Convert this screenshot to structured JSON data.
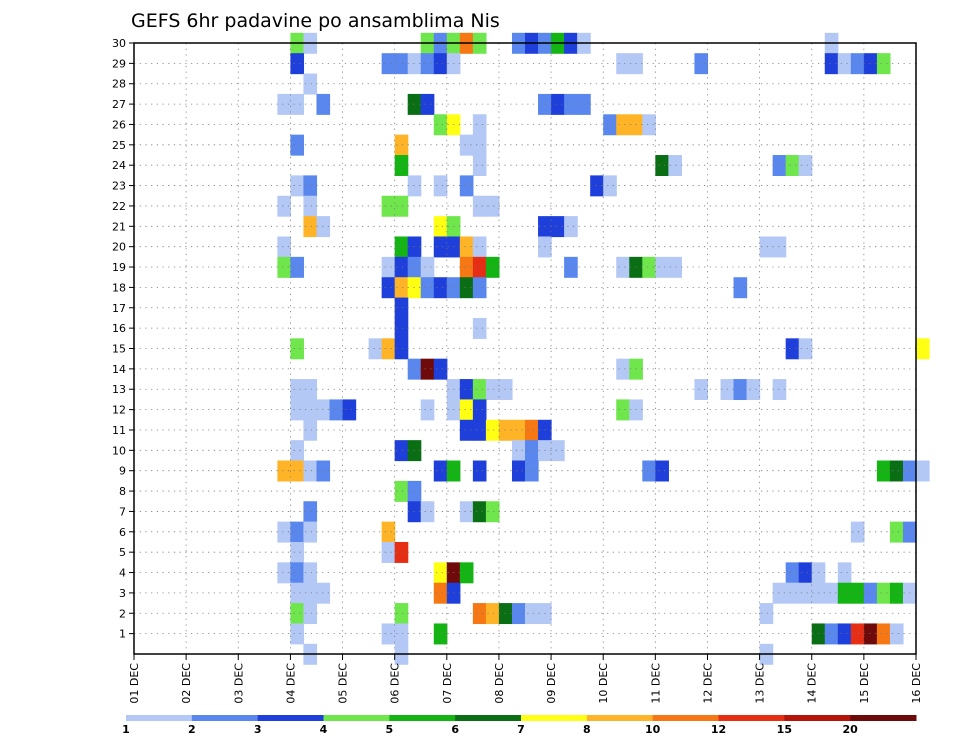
{
  "chart_data": {
    "type": "heatmap",
    "title": "GEFS 6hr padavine po ansamblima Nis",
    "xlabel": "",
    "ylabel": "",
    "x_tick_labels": [
      "01 DEC",
      "02 DEC",
      "03 DEC",
      "04 DEC",
      "05 DEC",
      "06 DEC",
      "07 DEC",
      "08 DEC",
      "09 DEC",
      "10 DEC",
      "11 DEC",
      "12 DEC",
      "13 DEC",
      "14 DEC",
      "15 DEC",
      "16 DEC"
    ],
    "x_range_days": [
      0,
      15
    ],
    "steps_per_day": 4,
    "y_tick_labels": [
      "1",
      "2",
      "3",
      "4",
      "5",
      "6",
      "7",
      "8",
      "9",
      "10",
      "11",
      "12",
      "13",
      "14",
      "15",
      "16",
      "17",
      "18",
      "19",
      "20",
      "21",
      "22",
      "23",
      "24",
      "25",
      "26",
      "27",
      "28",
      "29",
      "30"
    ],
    "y_range": [
      0,
      30
    ],
    "grid": true,
    "colorbar": {
      "labels": [
        "1",
        "2",
        "3",
        "4",
        "5",
        "6",
        "7",
        "8",
        "10",
        "12",
        "15",
        "20"
      ],
      "colors": [
        "#b4c8f5",
        "#5a87ee",
        "#1e3fd9",
        "#6ee64c",
        "#14b414",
        "#0a6e14",
        "#ffff14",
        "#ffb428",
        "#f57814",
        "#e62e14",
        "#b4140a",
        "#6e0a0a"
      ]
    },
    "level_colors": [
      "#b4c8f5",
      "#5a87ee",
      "#1e3fd9",
      "#6ee64c",
      "#14b414",
      "#0a6e14",
      "#ffff14",
      "#ffb428",
      "#f57814",
      "#e62e14",
      "#b4140a",
      "#6e0a0a"
    ],
    "cells_note": "each cell: [member, time-step index (6h steps from 01 DEC 00Z), level index 1-12 into colorbar]",
    "cells": [
      [
        30,
        12,
        4
      ],
      [
        30,
        13,
        1
      ],
      [
        30,
        22,
        4
      ],
      [
        30,
        23,
        2
      ],
      [
        30,
        24,
        4
      ],
      [
        30,
        25,
        9
      ],
      [
        30,
        26,
        4
      ],
      [
        30,
        29,
        2
      ],
      [
        30,
        30,
        3
      ],
      [
        30,
        31,
        2
      ],
      [
        30,
        32,
        5
      ],
      [
        30,
        33,
        3
      ],
      [
        30,
        34,
        1
      ],
      [
        30,
        53,
        1
      ],
      [
        29,
        12,
        3
      ],
      [
        29,
        19,
        2
      ],
      [
        29,
        20,
        2
      ],
      [
        29,
        21,
        1
      ],
      [
        29,
        22,
        2
      ],
      [
        29,
        23,
        3
      ],
      [
        29,
        24,
        1
      ],
      [
        29,
        37,
        1
      ],
      [
        29,
        38,
        1
      ],
      [
        29,
        43,
        2
      ],
      [
        29,
        53,
        3
      ],
      [
        29,
        54,
        1
      ],
      [
        29,
        55,
        2
      ],
      [
        29,
        56,
        3
      ],
      [
        29,
        57,
        4
      ],
      [
        28,
        13,
        1
      ],
      [
        27,
        11,
        1
      ],
      [
        27,
        12,
        1
      ],
      [
        27,
        14,
        2
      ],
      [
        27,
        21,
        6
      ],
      [
        27,
        22,
        3
      ],
      [
        27,
        31,
        2
      ],
      [
        27,
        32,
        3
      ],
      [
        27,
        33,
        2
      ],
      [
        27,
        34,
        2
      ],
      [
        26,
        23,
        4
      ],
      [
        26,
        24,
        7
      ],
      [
        26,
        26,
        1
      ],
      [
        26,
        36,
        2
      ],
      [
        26,
        37,
        8
      ],
      [
        26,
        38,
        8
      ],
      [
        26,
        39,
        1
      ],
      [
        25,
        12,
        2
      ],
      [
        25,
        20,
        8
      ],
      [
        25,
        25,
        1
      ],
      [
        25,
        26,
        1
      ],
      [
        24,
        20,
        5
      ],
      [
        24,
        26,
        1
      ],
      [
        24,
        40,
        6
      ],
      [
        24,
        41,
        1
      ],
      [
        24,
        49,
        2
      ],
      [
        24,
        50,
        4
      ],
      [
        24,
        51,
        1
      ],
      [
        23,
        12,
        1
      ],
      [
        23,
        13,
        2
      ],
      [
        23,
        21,
        1
      ],
      [
        23,
        23,
        1
      ],
      [
        23,
        25,
        2
      ],
      [
        23,
        35,
        3
      ],
      [
        23,
        36,
        1
      ],
      [
        22,
        11,
        1
      ],
      [
        22,
        13,
        1
      ],
      [
        22,
        19,
        4
      ],
      [
        22,
        20,
        4
      ],
      [
        22,
        26,
        1
      ],
      [
        22,
        27,
        1
      ],
      [
        21,
        13,
        8
      ],
      [
        21,
        14,
        1
      ],
      [
        21,
        23,
        7
      ],
      [
        21,
        24,
        4
      ],
      [
        21,
        31,
        3
      ],
      [
        21,
        32,
        3
      ],
      [
        21,
        33,
        1
      ],
      [
        20,
        11,
        1
      ],
      [
        20,
        20,
        5
      ],
      [
        20,
        21,
        3
      ],
      [
        20,
        23,
        3
      ],
      [
        20,
        24,
        3
      ],
      [
        20,
        25,
        8
      ],
      [
        20,
        26,
        1
      ],
      [
        20,
        31,
        1
      ],
      [
        20,
        48,
        1
      ],
      [
        20,
        49,
        1
      ],
      [
        19,
        11,
        4
      ],
      [
        19,
        12,
        2
      ],
      [
        19,
        19,
        1
      ],
      [
        19,
        20,
        3
      ],
      [
        19,
        21,
        2
      ],
      [
        19,
        22,
        1
      ],
      [
        19,
        25,
        9
      ],
      [
        19,
        26,
        10
      ],
      [
        19,
        27,
        5
      ],
      [
        19,
        33,
        2
      ],
      [
        19,
        37,
        1
      ],
      [
        19,
        38,
        6
      ],
      [
        19,
        39,
        4
      ],
      [
        19,
        40,
        1
      ],
      [
        19,
        41,
        1
      ],
      [
        18,
        19,
        3
      ],
      [
        18,
        20,
        8
      ],
      [
        18,
        21,
        7
      ],
      [
        18,
        22,
        2
      ],
      [
        18,
        23,
        3
      ],
      [
        18,
        24,
        2
      ],
      [
        18,
        25,
        6
      ],
      [
        18,
        26,
        2
      ],
      [
        18,
        46,
        2
      ],
      [
        17,
        20,
        3
      ],
      [
        16,
        20,
        3
      ],
      [
        16,
        26,
        1
      ],
      [
        15,
        12,
        4
      ],
      [
        15,
        18,
        1
      ],
      [
        15,
        19,
        8
      ],
      [
        15,
        20,
        3
      ],
      [
        15,
        50,
        3
      ],
      [
        15,
        51,
        1
      ],
      [
        15,
        60,
        7
      ],
      [
        14,
        21,
        2
      ],
      [
        14,
        22,
        12
      ],
      [
        14,
        23,
        3
      ],
      [
        14,
        37,
        1
      ],
      [
        14,
        38,
        4
      ],
      [
        13,
        12,
        1
      ],
      [
        13,
        13,
        1
      ],
      [
        13,
        24,
        1
      ],
      [
        13,
        25,
        3
      ],
      [
        13,
        26,
        4
      ],
      [
        13,
        27,
        1
      ],
      [
        13,
        28,
        1
      ],
      [
        13,
        43,
        1
      ],
      [
        13,
        45,
        1
      ],
      [
        13,
        46,
        2
      ],
      [
        13,
        47,
        1
      ],
      [
        13,
        49,
        1
      ],
      [
        12,
        12,
        1
      ],
      [
        12,
        13,
        1
      ],
      [
        12,
        14,
        1
      ],
      [
        12,
        15,
        2
      ],
      [
        12,
        16,
        3
      ],
      [
        12,
        22,
        1
      ],
      [
        12,
        24,
        1
      ],
      [
        12,
        25,
        7
      ],
      [
        12,
        26,
        3
      ],
      [
        12,
        37,
        4
      ],
      [
        12,
        38,
        1
      ],
      [
        11,
        13,
        1
      ],
      [
        11,
        25,
        3
      ],
      [
        11,
        26,
        3
      ],
      [
        11,
        27,
        7
      ],
      [
        11,
        28,
        8
      ],
      [
        11,
        29,
        8
      ],
      [
        11,
        30,
        9
      ],
      [
        11,
        31,
        3
      ],
      [
        10,
        12,
        1
      ],
      [
        10,
        20,
        3
      ],
      [
        10,
        21,
        6
      ],
      [
        10,
        29,
        1
      ],
      [
        10,
        30,
        2
      ],
      [
        10,
        31,
        1
      ],
      [
        10,
        32,
        1
      ],
      [
        9,
        11,
        8
      ],
      [
        9,
        12,
        8
      ],
      [
        9,
        13,
        1
      ],
      [
        9,
        14,
        2
      ],
      [
        9,
        23,
        3
      ],
      [
        9,
        24,
        5
      ],
      [
        9,
        26,
        3
      ],
      [
        9,
        29,
        3
      ],
      [
        9,
        30,
        2
      ],
      [
        9,
        39,
        2
      ],
      [
        9,
        40,
        3
      ],
      [
        9,
        57,
        5
      ],
      [
        9,
        58,
        6
      ],
      [
        9,
        59,
        2
      ],
      [
        9,
        60,
        1
      ],
      [
        8,
        20,
        4
      ],
      [
        8,
        21,
        2
      ],
      [
        7,
        13,
        2
      ],
      [
        7,
        21,
        3
      ],
      [
        7,
        22,
        1
      ],
      [
        7,
        25,
        1
      ],
      [
        7,
        26,
        6
      ],
      [
        7,
        27,
        4
      ],
      [
        6,
        11,
        1
      ],
      [
        6,
        12,
        2
      ],
      [
        6,
        13,
        1
      ],
      [
        6,
        19,
        8
      ],
      [
        6,
        55,
        1
      ],
      [
        6,
        58,
        4
      ],
      [
        6,
        59,
        2
      ],
      [
        5,
        12,
        1
      ],
      [
        5,
        19,
        1
      ],
      [
        5,
        20,
        10
      ],
      [
        4,
        11,
        1
      ],
      [
        4,
        12,
        2
      ],
      [
        4,
        13,
        1
      ],
      [
        4,
        23,
        7
      ],
      [
        4,
        24,
        12
      ],
      [
        4,
        25,
        5
      ],
      [
        4,
        50,
        2
      ],
      [
        4,
        51,
        3
      ],
      [
        4,
        52,
        1
      ],
      [
        4,
        54,
        1
      ],
      [
        3,
        12,
        1
      ],
      [
        3,
        13,
        1
      ],
      [
        3,
        14,
        1
      ],
      [
        3,
        23,
        9
      ],
      [
        3,
        24,
        3
      ],
      [
        3,
        49,
        1
      ],
      [
        3,
        50,
        1
      ],
      [
        3,
        51,
        1
      ],
      [
        3,
        52,
        1
      ],
      [
        3,
        53,
        1
      ],
      [
        3,
        54,
        5
      ],
      [
        3,
        55,
        5
      ],
      [
        3,
        56,
        2
      ],
      [
        3,
        57,
        4
      ],
      [
        3,
        58,
        5
      ],
      [
        3,
        59,
        1
      ],
      [
        2,
        12,
        4
      ],
      [
        2,
        13,
        1
      ],
      [
        2,
        20,
        4
      ],
      [
        2,
        26,
        9
      ],
      [
        2,
        27,
        8
      ],
      [
        2,
        28,
        6
      ],
      [
        2,
        29,
        2
      ],
      [
        2,
        30,
        1
      ],
      [
        2,
        31,
        1
      ],
      [
        2,
        48,
        1
      ],
      [
        1,
        12,
        1
      ],
      [
        1,
        19,
        1
      ],
      [
        1,
        20,
        1
      ],
      [
        1,
        23,
        5
      ],
      [
        1,
        52,
        6
      ],
      [
        1,
        53,
        2
      ],
      [
        1,
        54,
        3
      ],
      [
        1,
        55,
        10
      ],
      [
        1,
        56,
        12
      ],
      [
        1,
        57,
        9
      ],
      [
        1,
        58,
        1
      ],
      [
        0,
        13,
        1
      ],
      [
        0,
        20,
        1
      ],
      [
        0,
        48,
        1
      ]
    ]
  }
}
